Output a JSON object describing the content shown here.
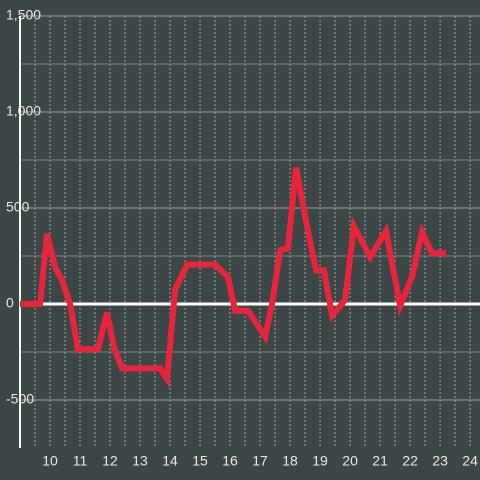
{
  "chart_data": {
    "type": "line",
    "x": [
      9.0,
      9.67,
      9.9,
      10.17,
      10.4,
      10.67,
      10.93,
      11.6,
      11.9,
      12.13,
      12.4,
      13.67,
      13.9,
      14.17,
      14.57,
      15.5,
      15.93,
      16.17,
      16.6,
      17.17,
      17.4,
      17.67,
      17.93,
      18.2,
      18.67,
      18.87,
      19.13,
      19.4,
      19.83,
      20.13,
      20.67,
      21.2,
      21.67,
      22.07,
      22.4,
      22.73,
      23.2
    ],
    "series": [
      {
        "color": "#e8243c",
        "values": [
          0,
          0,
          365,
          190,
          125,
          0,
          -235,
          -235,
          -45,
          -225,
          -335,
          -335,
          -390,
          75,
          205,
          205,
          140,
          -35,
          -35,
          -170,
          0,
          280,
          290,
          710,
          320,
          175,
          175,
          -60,
          20,
          405,
          245,
          380,
          -10,
          145,
          375,
          265,
          265
        ]
      }
    ],
    "xlim": [
      9,
      24.33
    ],
    "xticks": [
      10,
      11,
      12,
      13,
      14,
      15,
      16,
      17,
      18,
      19,
      20,
      21,
      22,
      23,
      24
    ],
    "ylim": [
      -750,
      1500
    ],
    "yticks": [
      {
        "value": 1500,
        "label": "1,500"
      },
      {
        "value": 1000,
        "label": "1,000"
      },
      500,
      0,
      -500
    ],
    "grid": true
  }
}
